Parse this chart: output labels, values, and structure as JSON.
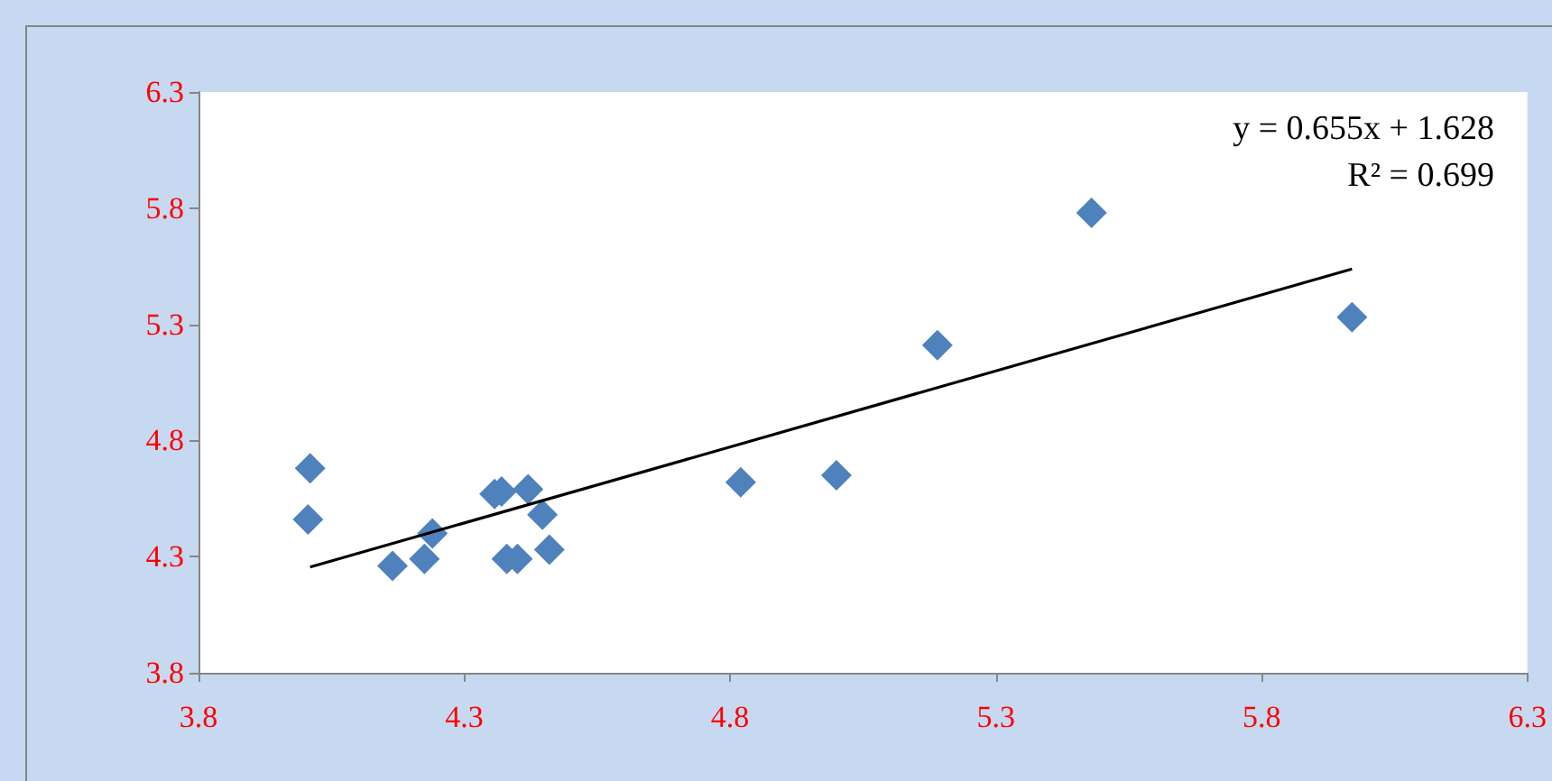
{
  "chart_data": {
    "type": "scatter",
    "marker": "diamond",
    "grid": false,
    "xlim": [
      3.8,
      6.3
    ],
    "xticks": [
      3.8,
      4.3,
      4.8,
      5.3,
      5.8,
      6.3
    ],
    "ylim": [
      3.8,
      6.3
    ],
    "yticks": [
      3.8,
      4.3,
      4.8,
      5.3,
      5.8,
      6.3
    ],
    "annotations": [
      "y = 0.655x + 1.628",
      "R² = 0.699"
    ],
    "series": [
      {
        "color": "#4f81bd",
        "x": [
          4.01,
          4.006,
          4.165,
          4.225,
          4.24,
          4.357,
          4.37,
          4.42,
          4.447,
          4.38,
          4.4,
          4.46,
          4.82,
          5.0,
          5.19,
          5.48,
          5.97
        ],
        "values": [
          4.68,
          4.46,
          4.26,
          4.29,
          4.4,
          4.57,
          4.58,
          4.59,
          4.48,
          4.29,
          4.29,
          4.33,
          4.62,
          4.65,
          5.21,
          5.78,
          5.33
        ]
      },
      {
        "type": "line",
        "marker": "none",
        "color": "#000000",
        "x": [
          4.01,
          5.97
        ],
        "values": [
          4.255,
          5.538
        ]
      }
    ]
  }
}
